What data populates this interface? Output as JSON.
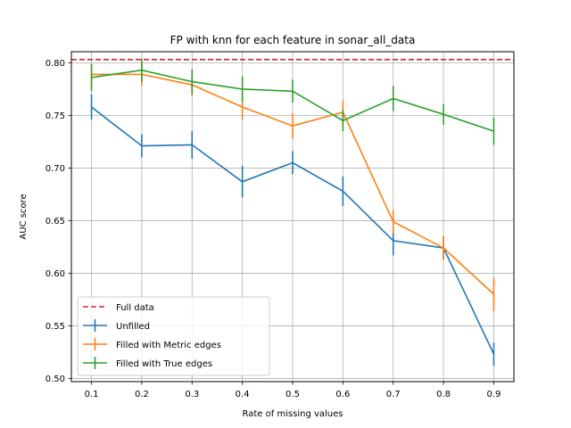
{
  "chart_data": {
    "type": "line",
    "title": "FP with knn for each feature in sonar_all_data",
    "xlabel": "Rate of missing values",
    "ylabel": "AUC score",
    "xlim": [
      0.06,
      0.94
    ],
    "ylim": [
      0.497,
      0.8105
    ],
    "x": [
      0.1,
      0.2,
      0.3,
      0.4,
      0.5,
      0.6,
      0.7,
      0.8,
      0.9
    ],
    "x_ticks": [
      "0.1",
      "0.2",
      "0.3",
      "0.4",
      "0.5",
      "0.6",
      "0.7",
      "0.8",
      "0.9"
    ],
    "y_ticks": [
      "0.50",
      "0.55",
      "0.60",
      "0.65",
      "0.70",
      "0.75",
      "0.80"
    ],
    "y_tick_values": [
      0.5,
      0.55,
      0.6,
      0.65,
      0.7,
      0.75,
      0.8
    ],
    "grid": true,
    "legend_position": "lower-left",
    "reference_line": {
      "name": "Full data",
      "value": 0.803,
      "color": "#d62728",
      "style": "dashed"
    },
    "series": [
      {
        "name": "Unfilled",
        "color": "#1f77b4",
        "values": [
          0.758,
          0.721,
          0.722,
          0.687,
          0.705,
          0.678,
          0.631,
          0.624,
          0.523
        ],
        "errors": [
          0.012,
          0.011,
          0.013,
          0.015,
          0.011,
          0.014,
          0.014,
          0.011,
          0.011
        ]
      },
      {
        "name": "Filled with Metric edges",
        "color": "#ff7f0e",
        "values": [
          0.789,
          0.789,
          0.779,
          0.758,
          0.74,
          0.753,
          0.649,
          0.624,
          0.58
        ],
        "errors": [
          0.01,
          0.011,
          0.011,
          0.012,
          0.012,
          0.011,
          0.011,
          0.011,
          0.016
        ]
      },
      {
        "name": "Filled with True edges",
        "color": "#2ca02c",
        "values": [
          0.786,
          0.793,
          0.782,
          0.775,
          0.773,
          0.745,
          0.766,
          0.751,
          0.735
        ],
        "errors": [
          0.013,
          0.011,
          0.012,
          0.012,
          0.011,
          0.01,
          0.012,
          0.01,
          0.013
        ]
      }
    ]
  }
}
